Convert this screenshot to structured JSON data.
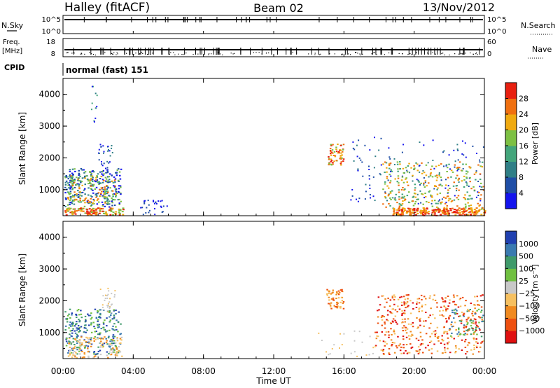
{
  "header": {
    "station": "Halley (fitACF)",
    "beam": "Beam 02",
    "date": "13/Nov/2012"
  },
  "top_panels": {
    "nsky_label": "N.Sky",
    "nsky_ticks": [
      "10^5",
      "10^0"
    ],
    "nsearch_label": "N.Search",
    "nsearch_ticks": [
      "10^5",
      "10^0"
    ],
    "freq_label": "Freq.",
    "freq_unit": "[MHz]",
    "freq_ticks": [
      "18",
      "8"
    ],
    "nave_label": "Nave",
    "nave_ticks": [
      "60",
      "0"
    ],
    "cpid_label": "CPID",
    "cpid_text": "normal (fast) 151"
  },
  "chart_data": [
    {
      "type": "heatmap",
      "quantity": "Power",
      "ylabel": "Slant Range [km]",
      "ylim": [
        180,
        4500
      ],
      "yticks": [
        "1000",
        "2000",
        "3000",
        "4000"
      ],
      "xlim": [
        "00:00",
        "24:00"
      ],
      "colorbar": {
        "label": "Power [dB]",
        "ticks": [
          "4",
          "8",
          "12",
          "16",
          "20",
          "24",
          "28"
        ],
        "colors": [
          "#1414ee",
          "#1f4ea6",
          "#2f7f86",
          "#43a57b",
          "#7dc043",
          "#f0aa10",
          "#f07010",
          "#e82010"
        ]
      }
    },
    {
      "type": "heatmap",
      "quantity": "Velocity",
      "ylabel": "Slant Range [km]",
      "ylim": [
        180,
        4500
      ],
      "yticks": [
        "1000",
        "2000",
        "3000",
        "4000"
      ],
      "xlim": [
        "00:00",
        "24:00"
      ],
      "colorbar": {
        "label": "Velocity [m s⁻¹]",
        "ticks": [
          "1000",
          "500",
          "100",
          "25",
          "−25",
          "−100",
          "−500",
          "−1000"
        ],
        "colors": [
          "#2040b0",
          "#3a7ab0",
          "#3f9a6a",
          "#70c040",
          "#c8c8c8",
          "#f6c060",
          "#f08a20",
          "#ee5010",
          "#e01010"
        ]
      }
    }
  ],
  "xaxis": {
    "label": "Time UT",
    "ticks": [
      "00:00",
      "04:00",
      "08:00",
      "12:00",
      "16:00",
      "20:00",
      "00:00"
    ]
  }
}
